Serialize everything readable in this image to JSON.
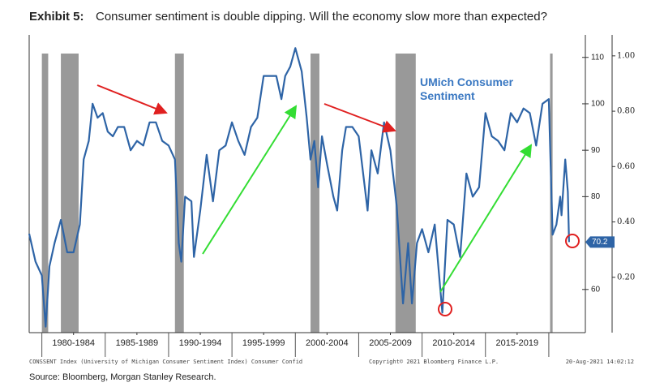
{
  "chart_data": {
    "type": "line",
    "exhibit_label": "Exhibit 5:",
    "title": "Consumer sentiment is double dipping. Will the economy slow more than expected?",
    "series_label": "UMich Consumer Sentiment",
    "footer_left": "CONSSENT Index (University of Michigan Consumer Sentiment Index) Consumer Confid",
    "footer_middle": "Copyright© 2021 Bloomberg Finance L.P.",
    "footer_right": "20-Aug-2021 14:02:12",
    "source": "Source: Bloomberg, Morgan Stanley Research.",
    "x": [
      1979.0,
      1979.5,
      1980.0,
      1980.3,
      1980.6,
      1981.0,
      1981.5,
      1982.0,
      1982.5,
      1983.0,
      1983.3,
      1983.7,
      1984.0,
      1984.4,
      1984.8,
      1985.2,
      1985.6,
      1986.0,
      1986.5,
      1987.0,
      1987.5,
      1988.0,
      1988.5,
      1989.0,
      1989.5,
      1990.0,
      1990.5,
      1990.8,
      1991.0,
      1991.3,
      1991.8,
      1992.0,
      1992.5,
      1993.0,
      1993.5,
      1994.0,
      1994.5,
      1995.0,
      1995.5,
      1996.0,
      1996.5,
      1997.0,
      1997.5,
      1998.0,
      1998.5,
      1998.9,
      1999.2,
      1999.6,
      2000.0,
      2000.5,
      2000.9,
      2001.2,
      2001.5,
      2001.8,
      2002.1,
      2002.5,
      2003.0,
      2003.3,
      2003.7,
      2004.0,
      2004.5,
      2005.0,
      2005.7,
      2006.0,
      2006.5,
      2007.0,
      2007.5,
      2008.0,
      2008.5,
      2008.9,
      2009.2,
      2009.6,
      2010.0,
      2010.5,
      2011.0,
      2011.6,
      2012.0,
      2012.5,
      2013.0,
      2013.5,
      2014.0,
      2014.5,
      2015.0,
      2015.5,
      2016.0,
      2016.5,
      2017.0,
      2017.5,
      2018.0,
      2018.5,
      2019.0,
      2019.5,
      2020.0,
      2020.3,
      2020.6,
      2020.9,
      2021.0,
      2021.3,
      2021.5,
      2021.6
    ],
    "series": [
      {
        "name": "UMich Consumer Sentiment",
        "color": "#2e64a6",
        "values": [
          72,
          66,
          63,
          52,
          65,
          70,
          75,
          68,
          68,
          74,
          88,
          92,
          100,
          97,
          98,
          94,
          93,
          95,
          95,
          90,
          92,
          91,
          96,
          96,
          92,
          91,
          88,
          70,
          66,
          80,
          79,
          67,
          77,
          89,
          79,
          90,
          91,
          96,
          92,
          89,
          95,
          97,
          106,
          106,
          106,
          101,
          106,
          108,
          112,
          107,
          97,
          88,
          92,
          82,
          93,
          87,
          80,
          77,
          90,
          95,
          95,
          93,
          77,
          90,
          85,
          96,
          90,
          78,
          57,
          70,
          57,
          70,
          73,
          68,
          74,
          55,
          75,
          74,
          67,
          85,
          80,
          82,
          98,
          93,
          92,
          90,
          98,
          96,
          99,
          98,
          91,
          100,
          101,
          71.8,
          74,
          80,
          76,
          88,
          81,
          70.2
        ]
      }
    ],
    "recessions": [
      [
        1980.0,
        1980.5
      ],
      [
        1981.5,
        1982.9
      ],
      [
        1990.5,
        1991.2
      ],
      [
        2001.2,
        2001.9
      ],
      [
        2007.9,
        2009.5
      ],
      [
        2020.1,
        2020.3
      ]
    ],
    "recession_color": "#999999",
    "xlim": [
      1979,
      2022.5
    ],
    "xticks": [
      {
        "value": 1982.5,
        "label": "1980-1984"
      },
      {
        "value": 1987.5,
        "label": "1985-1989"
      },
      {
        "value": 1992.5,
        "label": "1990-1994"
      },
      {
        "value": 1997.5,
        "label": "1995-1999"
      },
      {
        "value": 2002.5,
        "label": "2000-2004"
      },
      {
        "value": 2007.5,
        "label": "2005-2009"
      },
      {
        "value": 2012.5,
        "label": "2010-2014"
      },
      {
        "value": 2017.5,
        "label": "2015-2019"
      }
    ],
    "ylim": [
      50.7,
      111.7
    ],
    "yticks": [
      60,
      80,
      90,
      100,
      110
    ],
    "y2lim": [
      0,
      1.023
    ],
    "y2ticks": [
      {
        "value": 0.2,
        "label": "0.20"
      },
      {
        "value": 0.4,
        "label": "0.40"
      },
      {
        "value": 0.6,
        "label": "0.60"
      },
      {
        "value": 0.8,
        "label": "0.80"
      },
      {
        "value": 1,
        "label": "1.00"
      }
    ]
  }
}
